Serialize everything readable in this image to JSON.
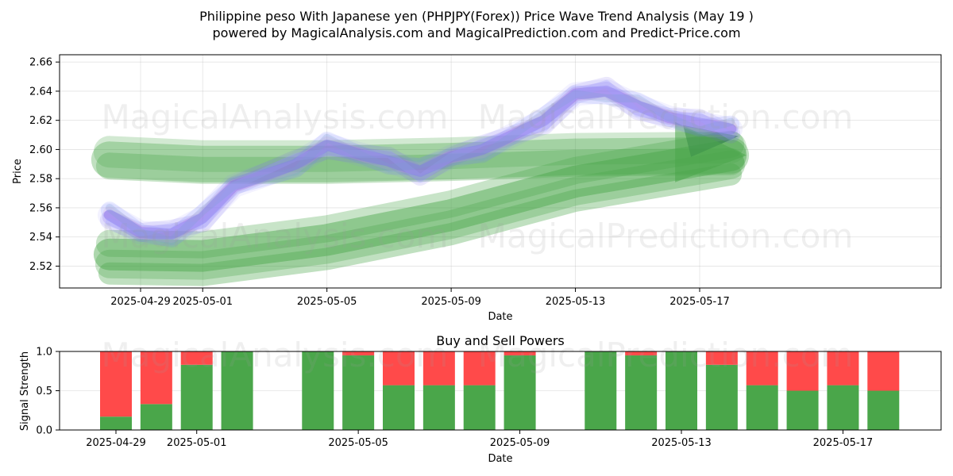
{
  "title_line1": "Philippine peso With Japanese yen (PHPJPY(Forex)) Price Wave Trend Analysis (May 19 )",
  "title_line2": "powered by MagicalAnalysis.com and MagicalPrediction.com and Predict-Price.com",
  "watermarks": [
    "MagicalAnalysis.com",
    "MagicalPrediction.com"
  ],
  "colors": {
    "buy": "#4aa64a",
    "sell": "#ff4a4a",
    "price_wave": "#7b68ee",
    "trend_band": "#4aa64a"
  },
  "chart_data": [
    {
      "type": "line",
      "xlabel": "Date",
      "ylabel": "Price",
      "ylim": [
        2.505,
        2.665
      ],
      "y_ticks": [
        "2.52",
        "2.54",
        "2.56",
        "2.58",
        "2.60",
        "2.62",
        "2.64",
        "2.66"
      ],
      "x_ticks": [
        "2025-04-29",
        "2025-05-01",
        "2025-05-05",
        "2025-05-09",
        "2025-05-13",
        "2025-05-17"
      ],
      "grid": true,
      "series": [
        {
          "x": [
            "2025-04-28",
            "2025-04-29",
            "2025-04-30",
            "2025-05-01",
            "2025-05-02",
            "2025-05-04",
            "2025-05-05",
            "2025-05-06",
            "2025-05-07",
            "2025-05-08",
            "2025-05-09",
            "2025-05-10",
            "2025-05-12",
            "2025-05-13",
            "2025-05-14",
            "2025-05-15",
            "2025-05-16",
            "2025-05-17",
            "2025-05-18"
          ],
          "values": [
            2.555,
            2.543,
            2.542,
            2.553,
            2.575,
            2.59,
            2.603,
            2.597,
            2.592,
            2.585,
            2.595,
            2.6,
            2.62,
            2.638,
            2.64,
            2.63,
            2.622,
            2.618,
            2.614
          ]
        },
        {
          "x": [
            "2025-04-28",
            "2025-05-01",
            "2025-05-05",
            "2025-05-09",
            "2025-05-13",
            "2025-05-18"
          ],
          "values": [
            2.593,
            2.59,
            2.59,
            2.592,
            2.595,
            2.596
          ]
        },
        {
          "x": [
            "2025-04-28",
            "2025-05-01",
            "2025-05-05",
            "2025-05-09",
            "2025-05-13",
            "2025-05-18"
          ],
          "values": [
            2.528,
            2.527,
            2.538,
            2.555,
            2.578,
            2.596
          ]
        }
      ]
    },
    {
      "type": "bar",
      "title": "Buy and Sell Powers",
      "xlabel": "Date",
      "ylabel": "Signal Strength",
      "ylim": [
        0,
        1.0
      ],
      "y_ticks": [
        "0.0",
        "0.5",
        "1.0"
      ],
      "x_ticks": [
        "2025-04-29",
        "2025-05-01",
        "2025-05-05",
        "2025-05-09",
        "2025-05-13",
        "2025-05-17"
      ],
      "categories": [
        "2025-04-29",
        "2025-04-30",
        "2025-05-01",
        "2025-05-02",
        "2025-05-04",
        "2025-05-05",
        "2025-05-06",
        "2025-05-07",
        "2025-05-08",
        "2025-05-09",
        "2025-05-11",
        "2025-05-12",
        "2025-05-13",
        "2025-05-14",
        "2025-05-15",
        "2025-05-16",
        "2025-05-17",
        "2025-05-18"
      ],
      "series": [
        {
          "values": [
            0.17,
            0.33,
            0.83,
            1.0,
            1.0,
            0.95,
            0.57,
            0.57,
            0.57,
            0.95,
            1.0,
            0.95,
            1.0,
            0.83,
            0.57,
            0.5,
            0.57,
            0.5
          ]
        },
        {
          "values": [
            0.83,
            0.67,
            0.17,
            0.0,
            0.0,
            0.05,
            0.43,
            0.43,
            0.43,
            0.05,
            0.0,
            0.05,
            0.0,
            0.17,
            0.43,
            0.5,
            0.43,
            0.5
          ]
        }
      ]
    }
  ]
}
